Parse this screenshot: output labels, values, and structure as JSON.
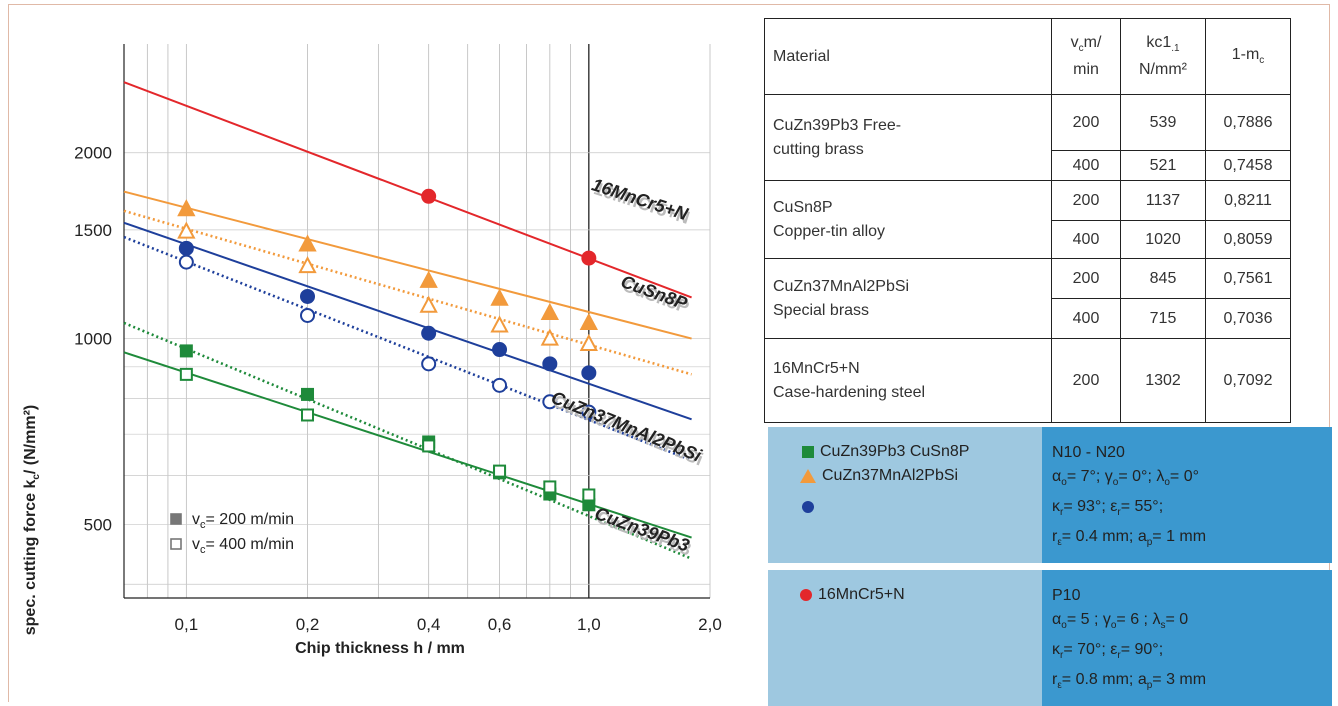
{
  "chart_data": {
    "type": "line",
    "xlabel": "Chip thickness h / mm",
    "ylabel": "spec. cutting force k_c / (N/mm²)",
    "xscale": "log",
    "yscale": "log",
    "xlim": [
      0.07,
      2.0
    ],
    "ylim": [
      380,
      3000
    ],
    "xticks": [
      0.1,
      0.2,
      0.4,
      0.6,
      1.0,
      2.0
    ],
    "xtick_labels": [
      "0,1",
      "0,2",
      "0,4",
      "0,6",
      "1,0",
      "2,0"
    ],
    "yticks": [
      500,
      1000,
      1500,
      2000
    ],
    "ytick_labels": [
      "500",
      "1000",
      "1500",
      "2000"
    ],
    "legend": {
      "position": "bottom-left",
      "items": [
        {
          "label": "v_c= 200 m/min",
          "marker": "filled-square"
        },
        {
          "label": "v_c= 400 m/min",
          "marker": "open-square"
        }
      ]
    },
    "series": [
      {
        "name": "16MnCr5+N",
        "color": "#e3272b",
        "vc": 200,
        "style": "solid",
        "marker": "filled-circle",
        "line": {
          "x": [
            0.07,
            1.8
          ],
          "y": [
            2602,
            1166
          ]
        },
        "points": {
          "x": [
            0.4,
            1.0
          ],
          "y": [
            1700,
            1350
          ]
        }
      },
      {
        "name": "CuSn8P",
        "color": "#f29a3c",
        "vc": 200,
        "style": "solid",
        "marker": "filled-triangle",
        "line": {
          "x": [
            0.07,
            1.8
          ],
          "y": [
            1730,
            1000
          ]
        },
        "points": {
          "x": [
            0.1,
            0.2,
            0.4,
            0.6,
            0.8,
            1.0
          ],
          "y": [
            1620,
            1420,
            1240,
            1160,
            1100,
            1060
          ]
        }
      },
      {
        "name": "CuSn8P (400 m/min)",
        "color": "#f29a3c",
        "vc": 400,
        "style": "dotted",
        "marker": "open-triangle",
        "line": {
          "x": [
            0.07,
            1.8
          ],
          "y": [
            1610,
            875
          ]
        },
        "points": {
          "x": [
            0.1,
            0.2,
            0.4,
            0.6,
            0.8,
            1.0
          ],
          "y": [
            1490,
            1310,
            1130,
            1050,
            1000,
            980
          ]
        }
      },
      {
        "name": "CuZn37MnAl2PbSi",
        "color": "#1e3f9b",
        "vc": 200,
        "style": "solid",
        "marker": "filled-circle",
        "line": {
          "x": [
            0.07,
            1.8
          ],
          "y": [
            1540,
            740
          ]
        },
        "points": {
          "x": [
            0.1,
            0.2,
            0.4,
            0.6,
            0.8,
            1.0
          ],
          "y": [
            1400,
            1170,
            1020,
            960,
            910,
            880
          ]
        }
      },
      {
        "name": "CuZn37MnAl2PbSi (400 m/min)",
        "color": "#1e3f9b",
        "vc": 400,
        "style": "dotted",
        "marker": "open-circle",
        "line": {
          "x": [
            0.07,
            1.8
          ],
          "y": [
            1460,
            635
          ]
        },
        "points": {
          "x": [
            0.1,
            0.2,
            0.4,
            0.6,
            0.8,
            1.0
          ],
          "y": [
            1330,
            1090,
            910,
            840,
            790,
            760
          ]
        }
      },
      {
        "name": "CuZn39Pb3",
        "color": "#1e8a3a",
        "vc": 200,
        "style": "solid",
        "marker": "filled-square",
        "line": {
          "x": [
            0.07,
            1.8
          ],
          "y": [
            950,
            476
          ]
        },
        "points": {
          "x": [
            0.1,
            0.2,
            0.4,
            0.6,
            0.8,
            1.0
          ],
          "y": [
            955,
            812,
            680,
            606,
            560,
            538
          ]
        }
      },
      {
        "name": "CuZn39Pb3 (400 m/min)",
        "color": "#1e8a3a",
        "vc": 400,
        "style": "dotted",
        "marker": "open-square",
        "line": {
          "x": [
            0.07,
            1.8
          ],
          "y": [
            1060,
            440
          ]
        },
        "points": {
          "x": [
            0.1,
            0.2,
            0.4,
            0.6,
            0.8,
            1.0
          ],
          "y": [
            875,
            752,
            670,
            610,
            575,
            558
          ]
        }
      }
    ],
    "series_labels": [
      {
        "text": "16MnCr5+N",
        "color": "#222"
      },
      {
        "text": "CuSn8P",
        "color": "#222"
      },
      {
        "text": "CuZn37MnAl2PbSi",
        "color": "#222"
      },
      {
        "text": "CuZn39Pb3",
        "color": "#222"
      }
    ]
  },
  "table": {
    "headers": {
      "material": "Material",
      "vc_top": "v",
      "vc_sub": "c",
      "vc_unit": "m/",
      "vc_unit2": "min",
      "kc_top": "kc1",
      "kc_sub": ".1",
      "kc_unit": "N/mm²",
      "m_top": "1-m",
      "m_sub": "c"
    },
    "rows": [
      {
        "material": [
          "CuZn39Pb3 Free-",
          "cutting brass"
        ],
        "vc": [
          "200",
          "400"
        ],
        "kc": [
          "539",
          "521"
        ],
        "m": [
          "0,7886",
          "0,7458"
        ]
      },
      {
        "material": [
          "CuSn8P",
          "Copper-tin alloy"
        ],
        "vc": [
          "200",
          "400"
        ],
        "kc": [
          "1137",
          "1020"
        ],
        "m": [
          "0,8211",
          "0,8059"
        ]
      },
      {
        "material": [
          "CuZn37MnAl2PbSi",
          "Special brass"
        ],
        "vc": [
          "200",
          "400"
        ],
        "kc": [
          "845",
          "715"
        ],
        "m": [
          "0,7561",
          "0,7036"
        ]
      },
      {
        "material": [
          "16MnCr5+N",
          "Case-hardening steel"
        ],
        "vc": [
          "200"
        ],
        "kc": [
          "1302"
        ],
        "m": [
          "0,7092"
        ]
      }
    ]
  },
  "conditions": [
    {
      "materials": [
        "CuZn39Pb3 CuSn8P",
        "CuZn37MnAl2PbSi",
        ""
      ],
      "marker_colors": [
        "#1e8a3a",
        "#f29a3c",
        "#1e3f9b"
      ],
      "grade": "N10 - N20",
      "line2": {
        "a": "α",
        "a_sub": "o",
        "a_val": "= 7°;",
        "g": "γ",
        "g_sub": "o",
        "g_val": "= 0°;",
        "l": "λ",
        "l_sub": "o",
        "l_val": "= 0°"
      },
      "line3": {
        "k": "κ",
        "k_sub": "r",
        "k_val": "= 93°;",
        "e": "ε",
        "e_sub": "r",
        "e_val": "= 55°;"
      },
      "line4": {
        "r": "r",
        "r_sub": "ε",
        "r_val": "= 0.4 mm;",
        "a": "a",
        "a_sub": "p",
        "a_val": "= 1 mm"
      }
    },
    {
      "materials": [
        "16MnCr5+N"
      ],
      "marker_colors": [
        "#e3272b"
      ],
      "grade": "P10",
      "line2": {
        "a": "α",
        "a_sub": "o",
        "a_val": "= 5 ;",
        "g": "γ",
        "g_sub": "o",
        "g_val": "= 6 ;",
        "l": "λ",
        "l_sub": "s",
        "l_val": "= 0"
      },
      "line3": {
        "k": "κ",
        "k_sub": "r",
        "k_val": "= 70°;",
        "e": "ε",
        "e_sub": "r",
        "e_val": "= 90°;"
      },
      "line4": {
        "r": "r",
        "r_sub": "ε",
        "r_val": "= 0.8 mm;",
        "a": "a",
        "a_sub": "p",
        "a_val": "= 3  mm"
      }
    }
  ]
}
